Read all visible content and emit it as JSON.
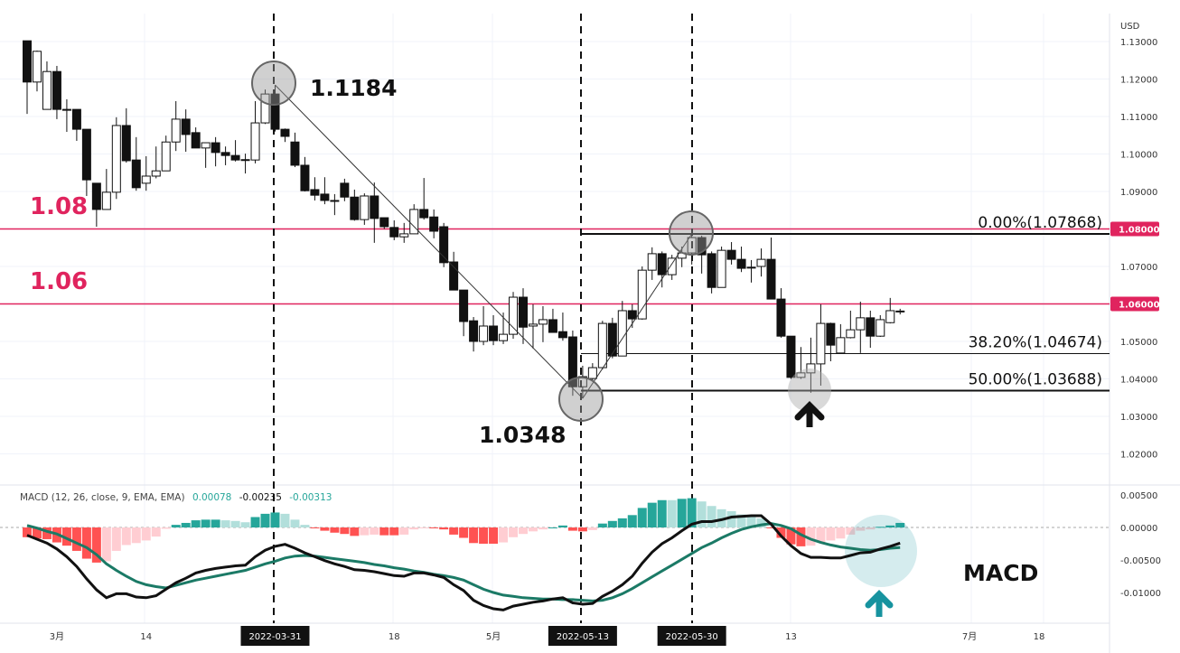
{
  "chart_data": {
    "type": "candlestick",
    "currency": "USD",
    "price_axis": {
      "ticks": [
        "1.13000",
        "1.12000",
        "1.11000",
        "1.10000",
        "1.09000",
        "1.08000",
        "1.07000",
        "1.06000",
        "1.05000",
        "1.04000",
        "1.03000",
        "1.02000"
      ],
      "range": [
        1.015,
        1.13
      ]
    },
    "macd_axis": {
      "ticks": [
        "0.00500",
        "0.00000",
        "-0.00500",
        "-0.01000"
      ]
    },
    "x_labels": [
      {
        "text": "3月",
        "bar": 3,
        "highlight": false
      },
      {
        "text": "14",
        "bar": 12,
        "highlight": false
      },
      {
        "text": "2022-03-31",
        "bar": 25,
        "highlight": true
      },
      {
        "text": "18",
        "bar": 37,
        "highlight": false
      },
      {
        "text": "5月",
        "bar": 47,
        "highlight": false
      },
      {
        "text": "2022-05-13",
        "bar": 56,
        "highlight": true
      },
      {
        "text": "2022-05-30",
        "bar": 67,
        "highlight": true
      },
      {
        "text": "13",
        "bar": 77,
        "highlight": false
      },
      {
        "text": "7月",
        "bar": 95,
        "highlight": false
      },
      {
        "text": "18",
        "bar": 102,
        "highlight": false
      }
    ],
    "ohlc": [
      [
        1.1302,
        1.1302,
        1.1107,
        1.1192
      ],
      [
        1.1192,
        1.1276,
        1.1167,
        1.1274
      ],
      [
        1.1119,
        1.1247,
        1.1119,
        1.122
      ],
      [
        1.122,
        1.1235,
        1.1093,
        1.1119
      ],
      [
        1.1119,
        1.1146,
        1.1059,
        1.1117
      ],
      [
        1.1119,
        1.1119,
        1.1035,
        1.1066
      ],
      [
        1.1066,
        1.1066,
        1.0888,
        1.0931
      ],
      [
        1.0922,
        1.0922,
        1.0806,
        1.0852
      ],
      [
        1.0852,
        1.096,
        1.0852,
        1.0898
      ],
      [
        1.0898,
        1.1098,
        1.088,
        1.1076
      ],
      [
        1.1076,
        1.1122,
        1.0977,
        1.0982
      ],
      [
        1.0984,
        1.1045,
        1.0902,
        1.091
      ],
      [
        1.0922,
        1.0994,
        1.0902,
        1.0941
      ],
      [
        1.0941,
        1.102,
        1.0935,
        1.0955
      ],
      [
        1.0955,
        1.1049,
        1.0955,
        1.1032
      ],
      [
        1.1032,
        1.1141,
        1.1008,
        1.1093
      ],
      [
        1.1093,
        1.1119,
        1.1006,
        1.1052
      ],
      [
        1.1057,
        1.1071,
        1.1016,
        1.1016
      ],
      [
        1.1016,
        1.103,
        1.0963,
        1.103
      ],
      [
        1.103,
        1.1045,
        1.0967,
        1.1004
      ],
      [
        1.1004,
        1.102,
        1.097,
        1.0996
      ],
      [
        1.0996,
        1.1037,
        1.098,
        1.0984
      ],
      [
        1.0985,
        1.1001,
        1.0948,
        1.0983
      ],
      [
        1.0984,
        1.1141,
        1.0975,
        1.1083
      ],
      [
        1.1083,
        1.1172,
        1.108,
        1.116
      ],
      [
        1.116,
        1.1184,
        1.106,
        1.1066
      ],
      [
        1.1066,
        1.1068,
        1.1032,
        1.1047
      ],
      [
        1.1032,
        1.1057,
        1.0965,
        1.097
      ],
      [
        1.097,
        1.0992,
        1.09,
        1.0902
      ],
      [
        1.0905,
        1.0938,
        1.0876,
        1.089
      ],
      [
        1.0893,
        1.0938,
        1.0866,
        1.0876
      ],
      [
        1.0876,
        1.0893,
        1.0837,
        1.0875
      ],
      [
        1.0922,
        1.0934,
        1.0874,
        1.0885
      ],
      [
        1.0885,
        1.0905,
        1.0822,
        1.0825
      ],
      [
        1.0825,
        1.0895,
        1.0811,
        1.0888
      ],
      [
        1.0888,
        1.0924,
        1.0763,
        1.0828
      ],
      [
        1.083,
        1.083,
        1.08,
        1.0806
      ],
      [
        1.0804,
        1.0823,
        1.077,
        1.0779
      ],
      [
        1.0779,
        1.0816,
        1.0763,
        1.0787
      ],
      [
        1.0787,
        1.0866,
        1.0787,
        1.0852
      ],
      [
        1.0852,
        1.0936,
        1.0825,
        1.083
      ],
      [
        1.0832,
        1.0852,
        1.0775,
        1.0794
      ],
      [
        1.0806,
        1.0816,
        1.0698,
        1.071
      ],
      [
        1.0712,
        1.0739,
        1.0637,
        1.0637
      ],
      [
        1.0637,
        1.0637,
        1.0514,
        1.0553
      ],
      [
        1.0555,
        1.0565,
        1.0473,
        1.05
      ],
      [
        1.05,
        1.0594,
        1.049,
        1.0541
      ],
      [
        1.0541,
        1.057,
        1.049,
        1.0502
      ],
      [
        1.0502,
        1.0577,
        1.0493,
        1.0519
      ],
      [
        1.0519,
        1.0632,
        1.0507,
        1.0618
      ],
      [
        1.0618,
        1.0642,
        1.0493,
        1.0538
      ],
      [
        1.0541,
        1.0599,
        1.0481,
        1.0546
      ],
      [
        1.0546,
        1.0594,
        1.0498,
        1.0558
      ],
      [
        1.0558,
        1.0587,
        1.0524,
        1.0524
      ],
      [
        1.0526,
        1.0577,
        1.0502,
        1.051
      ],
      [
        1.0512,
        1.0529,
        1.0355,
        1.0379
      ],
      [
        1.0379,
        1.0435,
        1.0348,
        1.0406
      ],
      [
        1.0401,
        1.0442,
        1.0395,
        1.043
      ],
      [
        1.043,
        1.0555,
        1.0425,
        1.0548
      ],
      [
        1.0548,
        1.0563,
        1.0455,
        1.0461
      ],
      [
        1.0461,
        1.0608,
        1.0461,
        1.0582
      ],
      [
        1.0582,
        1.0599,
        1.0536,
        1.056
      ],
      [
        1.056,
        1.07,
        1.0558,
        1.069
      ],
      [
        1.069,
        1.0751,
        1.0664,
        1.0734
      ],
      [
        1.0734,
        1.074,
        1.0644,
        1.0678
      ],
      [
        1.0678,
        1.0731,
        1.0664,
        1.0722
      ],
      [
        1.0722,
        1.0753,
        1.0698,
        1.0736
      ],
      [
        1.0736,
        1.0787,
        1.0705,
        1.0777
      ],
      [
        1.0777,
        1.0782,
        1.0681,
        1.0731
      ],
      [
        1.0734,
        1.074,
        1.0628,
        1.0644
      ],
      [
        1.0644,
        1.0753,
        1.0644,
        1.0743
      ],
      [
        1.0743,
        1.0765,
        1.0705,
        1.0719
      ],
      [
        1.0719,
        1.0753,
        1.0685,
        1.0695
      ],
      [
        1.0698,
        1.0717,
        1.0657,
        1.0696
      ],
      [
        1.07,
        1.0748,
        1.0673,
        1.0719
      ],
      [
        1.0719,
        1.0777,
        1.0613,
        1.0613
      ],
      [
        1.0613,
        1.0642,
        1.051,
        1.0514
      ],
      [
        1.0514,
        1.0514,
        1.04,
        1.0404
      ],
      [
        1.0404,
        1.0485,
        1.04,
        1.0416
      ],
      [
        1.0416,
        1.051,
        1.0363,
        1.044
      ],
      [
        1.044,
        1.0599,
        1.0382,
        1.0548
      ],
      [
        1.0548,
        1.055,
        1.0447,
        1.049
      ],
      [
        1.0469,
        1.0546,
        1.0467,
        1.051
      ],
      [
        1.051,
        1.0582,
        1.0508,
        1.0531
      ],
      [
        1.0531,
        1.0606,
        1.0469,
        1.0563
      ],
      [
        1.0563,
        1.0582,
        1.0483,
        1.0514
      ],
      [
        1.0514,
        1.057,
        1.0512,
        1.0558
      ],
      [
        1.055,
        1.0616,
        1.0548,
        1.0582
      ],
      [
        1.058,
        1.0587,
        1.0572,
        1.0581
      ]
    ],
    "macd": [
      -0.0012,
      -0.0018,
      -0.0024,
      -0.0033,
      -0.0045,
      -0.006,
      -0.0079,
      -0.0096,
      -0.0108,
      -0.0102,
      -0.0102,
      -0.0107,
      -0.0108,
      -0.0105,
      -0.0095,
      -0.0085,
      -0.0078,
      -0.007,
      -0.0066,
      -0.0063,
      -0.0061,
      -0.0059,
      -0.0058,
      -0.0045,
      -0.0035,
      -0.0029,
      -0.0026,
      -0.0032,
      -0.0039,
      -0.0045,
      -0.0051,
      -0.0056,
      -0.006,
      -0.0065,
      -0.0066,
      -0.0068,
      -0.0071,
      -0.0074,
      -0.0075,
      -0.007,
      -0.007,
      -0.0073,
      -0.0077,
      -0.0088,
      -0.0097,
      -0.0112,
      -0.012,
      -0.0125,
      -0.0127,
      -0.0121,
      -0.0118,
      -0.0115,
      -0.0113,
      -0.011,
      -0.0108,
      -0.0116,
      -0.0118,
      -0.0117,
      -0.0106,
      -0.0098,
      -0.0088,
      -0.0075,
      -0.0055,
      -0.0038,
      -0.0025,
      -0.0016,
      -0.0005,
      0.0005,
      0.0009,
      0.0009,
      0.0012,
      0.0016,
      0.0017,
      0.0018,
      0.0018,
      0.0005,
      -0.0013,
      -0.0028,
      -0.004,
      -0.0046,
      -0.0046,
      -0.0047,
      -0.0047,
      -0.0043,
      -0.0039,
      -0.0038,
      -0.0033,
      -0.0029,
      -0.0024
    ],
    "signal": [
      0.0003,
      -0.0001,
      -0.0006,
      -0.001,
      -0.0017,
      -0.0024,
      -0.0031,
      -0.0042,
      -0.0056,
      -0.0066,
      -0.0075,
      -0.0083,
      -0.0088,
      -0.0091,
      -0.0093,
      -0.0089,
      -0.0085,
      -0.0081,
      -0.0078,
      -0.0075,
      -0.0072,
      -0.0069,
      -0.0066,
      -0.0061,
      -0.0056,
      -0.0052,
      -0.0047,
      -0.0044,
      -0.0043,
      -0.0044,
      -0.0046,
      -0.0048,
      -0.005,
      -0.0052,
      -0.0054,
      -0.0057,
      -0.0059,
      -0.0062,
      -0.0064,
      -0.0067,
      -0.0069,
      -0.0072,
      -0.0074,
      -0.0077,
      -0.0081,
      -0.0088,
      -0.0095,
      -0.01,
      -0.0104,
      -0.0106,
      -0.0108,
      -0.0109,
      -0.011,
      -0.011,
      -0.0111,
      -0.0111,
      -0.0112,
      -0.0113,
      -0.0112,
      -0.0108,
      -0.0102,
      -0.0094,
      -0.0085,
      -0.0076,
      -0.0067,
      -0.0058,
      -0.0049,
      -0.004,
      -0.0031,
      -0.0024,
      -0.0016,
      -0.0009,
      -0.0003,
      0.0001,
      0.0004,
      0.0006,
      0.0003,
      -0.0002,
      -0.0011,
      -0.0018,
      -0.0023,
      -0.0027,
      -0.003,
      -0.0032,
      -0.0034,
      -0.0035,
      -0.0034,
      -0.0032,
      -0.0031
    ],
    "horizontal_levels": [
      {
        "price": 1.08,
        "label": "1.08",
        "badge": "1.08000"
      },
      {
        "price": 1.06,
        "label": "1.06",
        "badge": "1.06000"
      }
    ],
    "fib_levels": [
      {
        "price": 1.07868,
        "label": "0.00%(1.07868)"
      },
      {
        "price": 1.04674,
        "label": "38.20%(1.04674)"
      },
      {
        "price": 1.03688,
        "label": "50.00%(1.03688)"
      }
    ],
    "annotations": {
      "high": "1.1184",
      "low": "1.0348",
      "macd_label": "MACD"
    },
    "macd_legend": {
      "title": "MACD (12, 26, close, 9, EMA, EMA)",
      "hist": "0.00078",
      "macd": "-0.00235",
      "signal": "-0.00313"
    },
    "colors": {
      "pink": "#e0245e",
      "teal": "#26a69a",
      "teal_light": "#b2dfdb",
      "red": "#ff5252",
      "red_light": "#ffcdd2",
      "signal": "#1b7a66",
      "accent_circle": "#17939f"
    }
  }
}
